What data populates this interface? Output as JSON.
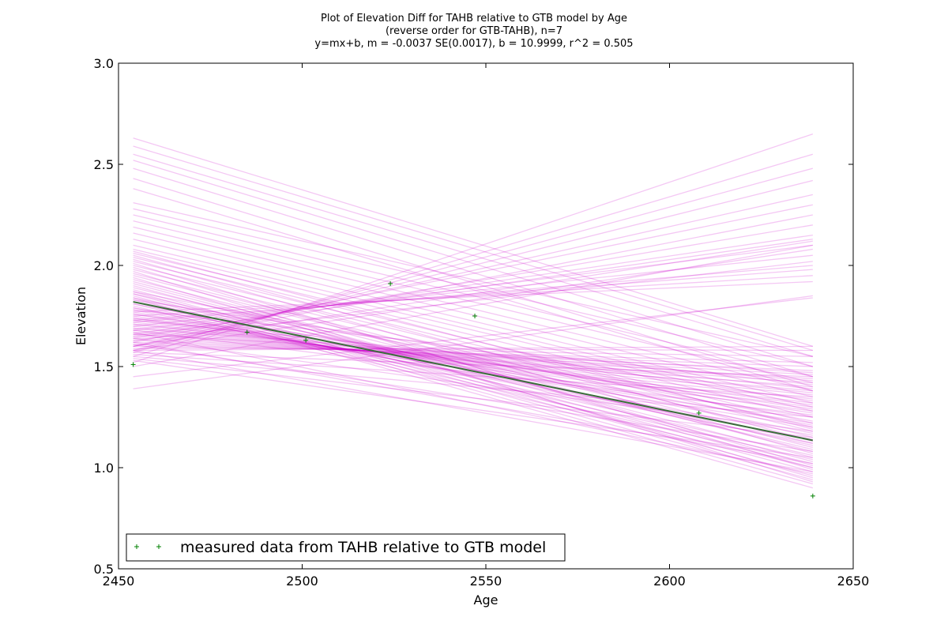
{
  "chart_data": {
    "type": "scatter",
    "title": [
      "Plot of Elevation Diff for TAHB relative to GTB model by Age",
      "(reverse order for GTB-TAHB), n=7",
      "y=mx+b, m = -0.0037 SE(0.0017), b = 10.9999, r^2 = 0.505"
    ],
    "xlabel": "Age",
    "ylabel": "Elevation",
    "xlim": [
      2450,
      2650
    ],
    "ylim": [
      0.5,
      3.0
    ],
    "xticks": [
      "2450",
      "2500",
      "2550",
      "2600",
      "2650"
    ],
    "xtick_values": [
      2450,
      2500,
      2550,
      2600,
      2650
    ],
    "yticks": [
      "0.5",
      "1.0",
      "1.5",
      "2.0",
      "2.5",
      "3.0"
    ],
    "ytick_values": [
      0.5,
      1.0,
      1.5,
      2.0,
      2.5,
      3.0
    ],
    "grid": false,
    "legend": {
      "placement": "lower-left",
      "entries": [
        "measured data from TAHB relative to GTB model"
      ]
    },
    "series": [
      {
        "name": "measured data from TAHB relative to GTB model",
        "marker": "+",
        "color": "#008000",
        "x": [
          2454,
          2485,
          2501,
          2524,
          2547,
          2608,
          2639
        ],
        "y": [
          1.51,
          1.67,
          1.63,
          1.91,
          1.75,
          1.27,
          0.86
        ]
      }
    ],
    "fit_line": {
      "color": "#3a6e3a",
      "x": [
        2454,
        2639
      ],
      "y": [
        1.82,
        1.135
      ]
    },
    "bootstrap_lines": {
      "color": "#cc00cc",
      "x_start": 2454,
      "x_end": 2639,
      "lines": [
        [
          1.52,
          2.65
        ],
        [
          1.55,
          2.55
        ],
        [
          1.57,
          2.48
        ],
        [
          1.58,
          2.42
        ],
        [
          1.6,
          2.35
        ],
        [
          1.62,
          2.3
        ],
        [
          1.6,
          2.25
        ],
        [
          1.64,
          2.2
        ],
        [
          1.66,
          2.15
        ],
        [
          1.65,
          2.13
        ],
        [
          1.68,
          2.1
        ],
        [
          1.7,
          2.05
        ],
        [
          1.72,
          2.0
        ],
        [
          1.73,
          1.98
        ],
        [
          1.75,
          1.95
        ],
        [
          1.77,
          1.92
        ],
        [
          1.6,
          2.12
        ],
        [
          1.58,
          2.08
        ],
        [
          1.63,
          2.02
        ],
        [
          1.39,
          1.85
        ],
        [
          1.45,
          1.84
        ],
        [
          1.5,
          2.1
        ],
        [
          2.63,
          1.6
        ],
        [
          2.59,
          1.58
        ],
        [
          2.55,
          1.55
        ],
        [
          2.52,
          1.5
        ],
        [
          2.48,
          1.45
        ],
        [
          2.43,
          1.4
        ],
        [
          2.38,
          1.38
        ],
        [
          2.31,
          1.55
        ],
        [
          2.28,
          1.5
        ],
        [
          2.25,
          1.45
        ],
        [
          2.22,
          1.42
        ],
        [
          2.19,
          1.38
        ],
        [
          2.16,
          1.35
        ],
        [
          2.13,
          1.32
        ],
        [
          2.1,
          1.3
        ],
        [
          2.08,
          1.28
        ],
        [
          2.06,
          1.25
        ],
        [
          2.04,
          1.22
        ],
        [
          2.02,
          1.2
        ],
        [
          2.0,
          1.18
        ],
        [
          1.98,
          1.15
        ],
        [
          1.96,
          1.12
        ],
        [
          1.95,
          1.1
        ],
        [
          1.93,
          1.08
        ],
        [
          1.92,
          1.05
        ],
        [
          1.91,
          1.03
        ],
        [
          1.9,
          1.0
        ],
        [
          1.88,
          0.98
        ],
        [
          1.87,
          0.96
        ],
        [
          1.86,
          0.94
        ],
        [
          1.85,
          0.92
        ],
        [
          1.84,
          0.9
        ],
        [
          1.83,
          1.06
        ],
        [
          1.82,
          1.04
        ],
        [
          1.81,
          1.02
        ],
        [
          1.8,
          1.0
        ],
        [
          1.79,
          1.12
        ],
        [
          1.78,
          1.14
        ],
        [
          1.77,
          1.16
        ],
        [
          1.76,
          1.2
        ],
        [
          1.75,
          1.22
        ],
        [
          1.74,
          1.25
        ],
        [
          1.73,
          1.28
        ],
        [
          1.72,
          1.3
        ],
        [
          1.71,
          1.32
        ],
        [
          1.7,
          1.34
        ],
        [
          1.69,
          1.36
        ],
        [
          1.68,
          1.38
        ],
        [
          1.67,
          1.4
        ],
        [
          1.66,
          1.42
        ],
        [
          1.65,
          1.44
        ],
        [
          1.64,
          1.46
        ],
        [
          1.63,
          1.48
        ],
        [
          1.62,
          1.5
        ],
        [
          1.61,
          1.52
        ],
        [
          1.6,
          1.55
        ],
        [
          1.59,
          1.58
        ],
        [
          1.58,
          1.6
        ],
        [
          1.57,
          1.45
        ],
        [
          1.56,
          1.35
        ],
        [
          1.55,
          1.25
        ],
        [
          1.54,
          1.15
        ],
        [
          1.53,
          1.05
        ],
        [
          1.94,
          0.95
        ],
        [
          1.97,
          0.93
        ],
        [
          1.89,
          1.09
        ],
        [
          1.86,
          1.11
        ],
        [
          1.84,
          1.17
        ],
        [
          1.81,
          1.21
        ],
        [
          1.79,
          1.27
        ],
        [
          1.76,
          1.29
        ],
        [
          1.74,
          1.31
        ],
        [
          1.71,
          1.37
        ],
        [
          1.69,
          1.43
        ],
        [
          1.66,
          1.47
        ],
        [
          1.99,
          1.01
        ],
        [
          2.01,
          0.99
        ],
        [
          2.03,
          1.07
        ],
        [
          2.05,
          1.13
        ],
        [
          2.07,
          1.19
        ],
        [
          1.87,
          1.23
        ],
        [
          1.83,
          1.33
        ],
        [
          1.78,
          1.41
        ],
        [
          1.73,
          1.39
        ],
        [
          1.68,
          1.26
        ],
        [
          1.64,
          1.18
        ],
        [
          1.61,
          1.08
        ],
        [
          1.58,
          0.98
        ],
        [
          1.62,
          1.02
        ],
        [
          1.67,
          0.97
        ]
      ]
    }
  }
}
